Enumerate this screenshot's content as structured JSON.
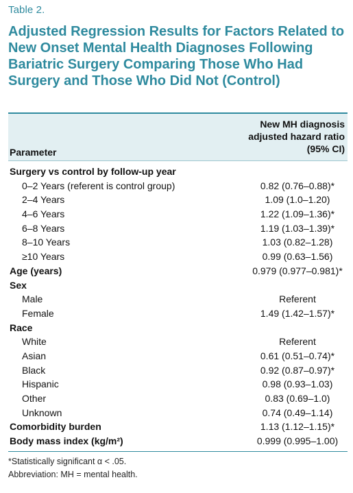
{
  "table_label": "Table 2.",
  "title": "Adjusted Regression Results for Factors Related to New Onset Mental Health Diagnoses Following Bariatric Surgery Comparing Those Who Had Surgery and Those Who Did Not (Control)",
  "header": {
    "parameter": "Parameter",
    "value_line1": "New MH diagnosis",
    "value_line2": "adjusted hazard ratio",
    "value_line3": "(95% CI)"
  },
  "rows": [
    {
      "param": "Surgery vs control by follow-up year",
      "value": "",
      "bold": true,
      "indent": false
    },
    {
      "param": "0–2 Years (referent is control group)",
      "value": "0.82 (0.76–0.88)*",
      "bold": false,
      "indent": true
    },
    {
      "param": "2–4 Years",
      "value": "1.09 (1.0–1.20)",
      "bold": false,
      "indent": true
    },
    {
      "param": "4–6 Years",
      "value": "1.22 (1.09–1.36)*",
      "bold": false,
      "indent": true
    },
    {
      "param": "6–8 Years",
      "value": "1.19 (1.03–1.39)*",
      "bold": false,
      "indent": true
    },
    {
      "param": "8–10 Years",
      "value": "1.03 (0.82–1.28)",
      "bold": false,
      "indent": true
    },
    {
      "param": "≥10 Years",
      "value": "0.99 (0.63–1.56)",
      "bold": false,
      "indent": true
    },
    {
      "param": "Age (years)",
      "value": "0.979 (0.977–0.981)*",
      "bold": true,
      "indent": false
    },
    {
      "param": "Sex",
      "value": "",
      "bold": true,
      "indent": false
    },
    {
      "param": "Male",
      "value": "Referent",
      "bold": false,
      "indent": true
    },
    {
      "param": "Female",
      "value": "1.49 (1.42–1.57)*",
      "bold": false,
      "indent": true
    },
    {
      "param": "Race",
      "value": "",
      "bold": true,
      "indent": false
    },
    {
      "param": "White",
      "value": "Referent",
      "bold": false,
      "indent": true
    },
    {
      "param": "Asian",
      "value": "0.61 (0.51–0.74)*",
      "bold": false,
      "indent": true
    },
    {
      "param": "Black",
      "value": "0.92 (0.87–0.97)*",
      "bold": false,
      "indent": true
    },
    {
      "param": "Hispanic",
      "value": "0.98 (0.93–1.03)",
      "bold": false,
      "indent": true
    },
    {
      "param": "Other",
      "value": "0.83 (0.69–1.0)",
      "bold": false,
      "indent": true
    },
    {
      "param": "Unknown",
      "value": "0.74 (0.49–1.14)",
      "bold": false,
      "indent": true
    },
    {
      "param": "Comorbidity burden",
      "value": "1.13 (1.12–1.15)*",
      "bold": true,
      "indent": false
    },
    {
      "param": "Body mass index (kg/m²)",
      "value": "0.999 (0.995–1.00)",
      "bold": true,
      "indent": false
    }
  ],
  "footnotes": {
    "significance": "*Statistically significant α < .05.",
    "abbreviation": "Abbreviation: MH = mental health."
  }
}
